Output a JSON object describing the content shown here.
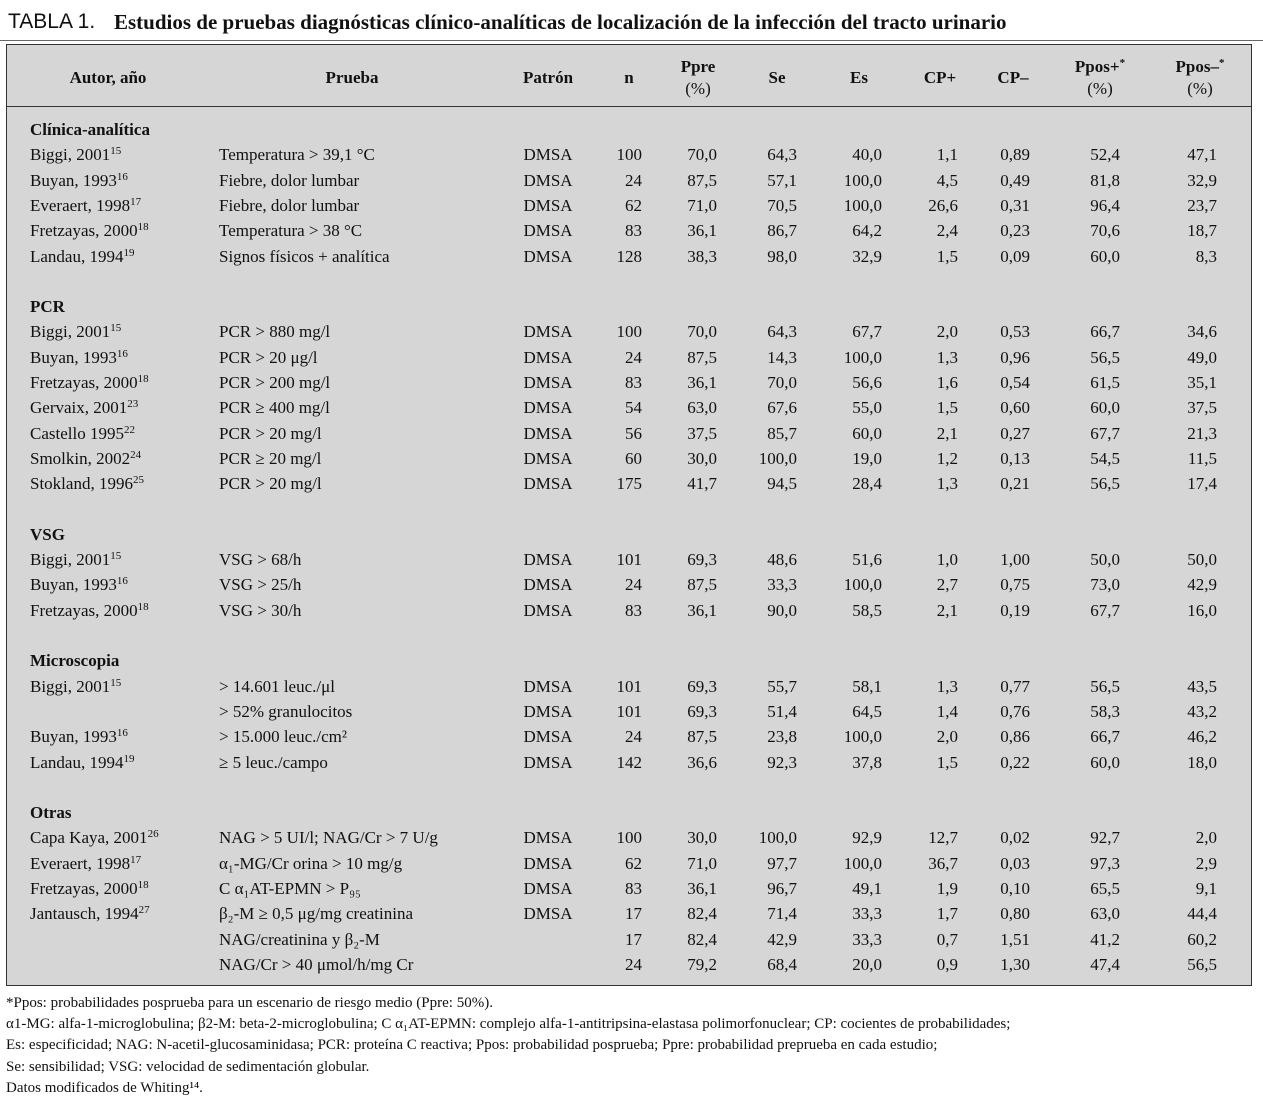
{
  "title": {
    "label": "TABLA 1.",
    "text": "Estudios de pruebas diagnósticas clínico-analíticas de localización de la infección del tracto urinario"
  },
  "table": {
    "header": [
      {
        "text": "Autor, año"
      },
      {
        "text": "Prueba"
      },
      {
        "text": "Patrón"
      },
      {
        "text": "n"
      },
      {
        "text": "Ppre",
        "line2": "(%)"
      },
      {
        "text": "Se"
      },
      {
        "text": "Es"
      },
      {
        "text": "CP+"
      },
      {
        "text": "CP–"
      },
      {
        "text": "Ppos+",
        "sup": "*",
        "line2": "(%)"
      },
      {
        "text": "Ppos–",
        "sup": "*",
        "line2": "(%)"
      }
    ],
    "sections": [
      {
        "title": "Clínica-analítica",
        "rows": [
          {
            "author": "Biggi, 2001",
            "ref": "15",
            "cells": [
              "Temperatura > 39,1 °C",
              "DMSA",
              "100",
              "70,0",
              "64,3",
              "40,0",
              "1,1",
              "0,89",
              "52,4",
              "47,1"
            ]
          },
          {
            "author": "Buyan, 1993",
            "ref": "16",
            "cells": [
              "Fiebre, dolor lumbar",
              "DMSA",
              "24",
              "87,5",
              "57,1",
              "100,0",
              "4,5",
              "0,49",
              "81,8",
              "32,9"
            ]
          },
          {
            "author": "Everaert, 1998",
            "ref": "17",
            "cells": [
              "Fiebre, dolor lumbar",
              "DMSA",
              "62",
              "71,0",
              "70,5",
              "100,0",
              "26,6",
              "0,31",
              "96,4",
              "23,7"
            ]
          },
          {
            "author": "Fretzayas, 2000",
            "ref": "18",
            "cells": [
              "Temperatura > 38 °C",
              "DMSA",
              "83",
              "36,1",
              "86,7",
              "64,2",
              "2,4",
              "0,23",
              "70,6",
              "18,7"
            ]
          },
          {
            "author": "Landau, 1994",
            "ref": "19",
            "cells": [
              "Signos físicos + analítica",
              "DMSA",
              "128",
              "38,3",
              "98,0",
              "32,9",
              "1,5",
              "0,09",
              "60,0",
              "8,3"
            ]
          }
        ]
      },
      {
        "title": "PCR",
        "rows": [
          {
            "author": "Biggi, 2001",
            "ref": "15",
            "cells": [
              "PCR > 880 mg/l",
              "DMSA",
              "100",
              "70,0",
              "64,3",
              "67,7",
              "2,0",
              "0,53",
              "66,7",
              "34,6"
            ]
          },
          {
            "author": "Buyan, 1993",
            "ref": "16",
            "cells": [
              "PCR > 20 μg/l",
              "DMSA",
              "24",
              "87,5",
              "14,3",
              "100,0",
              "1,3",
              "0,96",
              "56,5",
              "49,0"
            ]
          },
          {
            "author": "Fretzayas, 2000",
            "ref": "18",
            "cells": [
              "PCR > 200 mg/l",
              "DMSA",
              "83",
              "36,1",
              "70,0",
              "56,6",
              "1,6",
              "0,54",
              "61,5",
              "35,1"
            ]
          },
          {
            "author": "Gervaix, 2001",
            "ref": "23",
            "cells": [
              "PCR ≥ 400 mg/l",
              "DMSA",
              "54",
              "63,0",
              "67,6",
              "55,0",
              "1,5",
              "0,60",
              "60,0",
              "37,5"
            ]
          },
          {
            "author": "Castello 1995",
            "ref": "22",
            "cells": [
              "PCR > 20 mg/l",
              "DMSA",
              "56",
              "37,5",
              "85,7",
              "60,0",
              "2,1",
              "0,27",
              "67,7",
              "21,3"
            ]
          },
          {
            "author": "Smolkin, 2002",
            "ref": "24",
            "cells": [
              "PCR ≥ 20 mg/l",
              "DMSA",
              "60",
              "30,0",
              "100,0",
              "19,0",
              "1,2",
              "0,13",
              "54,5",
              "11,5"
            ]
          },
          {
            "author": "Stokland, 1996",
            "ref": "25",
            "cells": [
              "PCR > 20 mg/l",
              "DMSA",
              "175",
              "41,7",
              "94,5",
              "28,4",
              "1,3",
              "0,21",
              "56,5",
              "17,4"
            ]
          }
        ]
      },
      {
        "title": "VSG",
        "rows": [
          {
            "author": "Biggi, 2001",
            "ref": "15",
            "cells": [
              "VSG > 68/h",
              "DMSA",
              "101",
              "69,3",
              "48,6",
              "51,6",
              "1,0",
              "1,00",
              "50,0",
              "50,0"
            ]
          },
          {
            "author": "Buyan, 1993",
            "ref": "16",
            "cells": [
              "VSG > 25/h",
              "DMSA",
              "24",
              "87,5",
              "33,3",
              "100,0",
              "2,7",
              "0,75",
              "73,0",
              "42,9"
            ]
          },
          {
            "author": "Fretzayas, 2000",
            "ref": "18",
            "cells": [
              "VSG > 30/h",
              "DMSA",
              "83",
              "36,1",
              "90,0",
              "58,5",
              "2,1",
              "0,19",
              "67,7",
              "16,0"
            ]
          }
        ]
      },
      {
        "title": "Microscopia",
        "rows": [
          {
            "author": "Biggi, 2001",
            "ref": "15",
            "cells": [
              "> 14.601 leuc./μl",
              "DMSA",
              "101",
              "69,3",
              "55,7",
              "58,1",
              "1,3",
              "0,77",
              "56,5",
              "43,5"
            ]
          },
          {
            "cells": [
              "> 52% granulocitos",
              "DMSA",
              "101",
              "69,3",
              "51,4",
              "64,5",
              "1,4",
              "0,76",
              "58,3",
              "43,2"
            ]
          },
          {
            "author": "Buyan, 1993",
            "ref": "16",
            "cells": [
              "> 15.000 leuc./cm²",
              "DMSA",
              "24",
              "87,5",
              "23,8",
              "100,0",
              "2,0",
              "0,86",
              "66,7",
              "46,2"
            ]
          },
          {
            "author": "Landau, 1994",
            "ref": "19",
            "cells": [
              "≥ 5 leuc./campo",
              "DMSA",
              "142",
              "36,6",
              "92,3",
              "37,8",
              "1,5",
              "0,22",
              "60,0",
              "18,0"
            ]
          }
        ]
      },
      {
        "title": "Otras",
        "rows": [
          {
            "author": "Capa Kaya, 2001",
            "ref": "26",
            "cells": [
              "NAG > 5 UI/l; NAG/Cr > 7 U/g",
              "DMSA",
              "100",
              "30,0",
              "100,0",
              "92,9",
              "12,7",
              "0,02",
              "92,7",
              "2,0"
            ]
          },
          {
            "author": "Everaert, 1998",
            "ref": "17",
            "cells": [
              "α₁-MG/Cr orina > 10 mg/g",
              "DMSA",
              "62",
              "71,0",
              "97,7",
              "100,0",
              "36,7",
              "0,03",
              "97,3",
              "2,9"
            ]
          },
          {
            "author": "Fretzayas, 2000",
            "ref": "18",
            "cells": [
              "C α₁AT-EPMN > P₉₅",
              "DMSA",
              "83",
              "36,1",
              "96,7",
              "49,1",
              "1,9",
              "0,10",
              "65,5",
              "9,1"
            ]
          },
          {
            "author": "Jantausch, 1994",
            "ref": "27",
            "cells": [
              "β₂-M ≥ 0,5 μg/mg creatinina",
              "DMSA",
              "17",
              "82,4",
              "71,4",
              "33,3",
              "1,7",
              "0,80",
              "63,0",
              "44,4"
            ]
          },
          {
            "cells": [
              "NAG/creatinina y β₂-M",
              null,
              "17",
              "82,4",
              "42,9",
              "33,3",
              "0,7",
              "1,51",
              "41,2",
              "60,2"
            ]
          },
          {
            "cells": [
              "NAG/Cr > 40 μmol/h/mg Cr",
              null,
              "24",
              "79,2",
              "68,4",
              "20,0",
              "0,9",
              "1,30",
              "47,4",
              "56,5"
            ]
          }
        ]
      }
    ]
  },
  "footnotes": [
    "*Ppos: probabilidades posprueba para un escenario de riesgo medio (Ppre: 50%).",
    "α1-MG: alfa-1-microglobulina; β2-M: beta-2-microglobulina; C α₁AT-EPMN: complejo alfa-1-antitripsina-elastasa polimorfonuclear; CP: cocientes de probabilidades;",
    "Es: especificidad; NAG: N-acetil-glucosaminidasa; PCR: proteína C reactiva; Ppos: probabilidad posprueba; Ppre: probabilidad preprueba en cada estudio;",
    "Se: sensibilidad; VSG: velocidad de sedimentación globular.",
    "Datos modificados de Whiting¹⁴."
  ]
}
